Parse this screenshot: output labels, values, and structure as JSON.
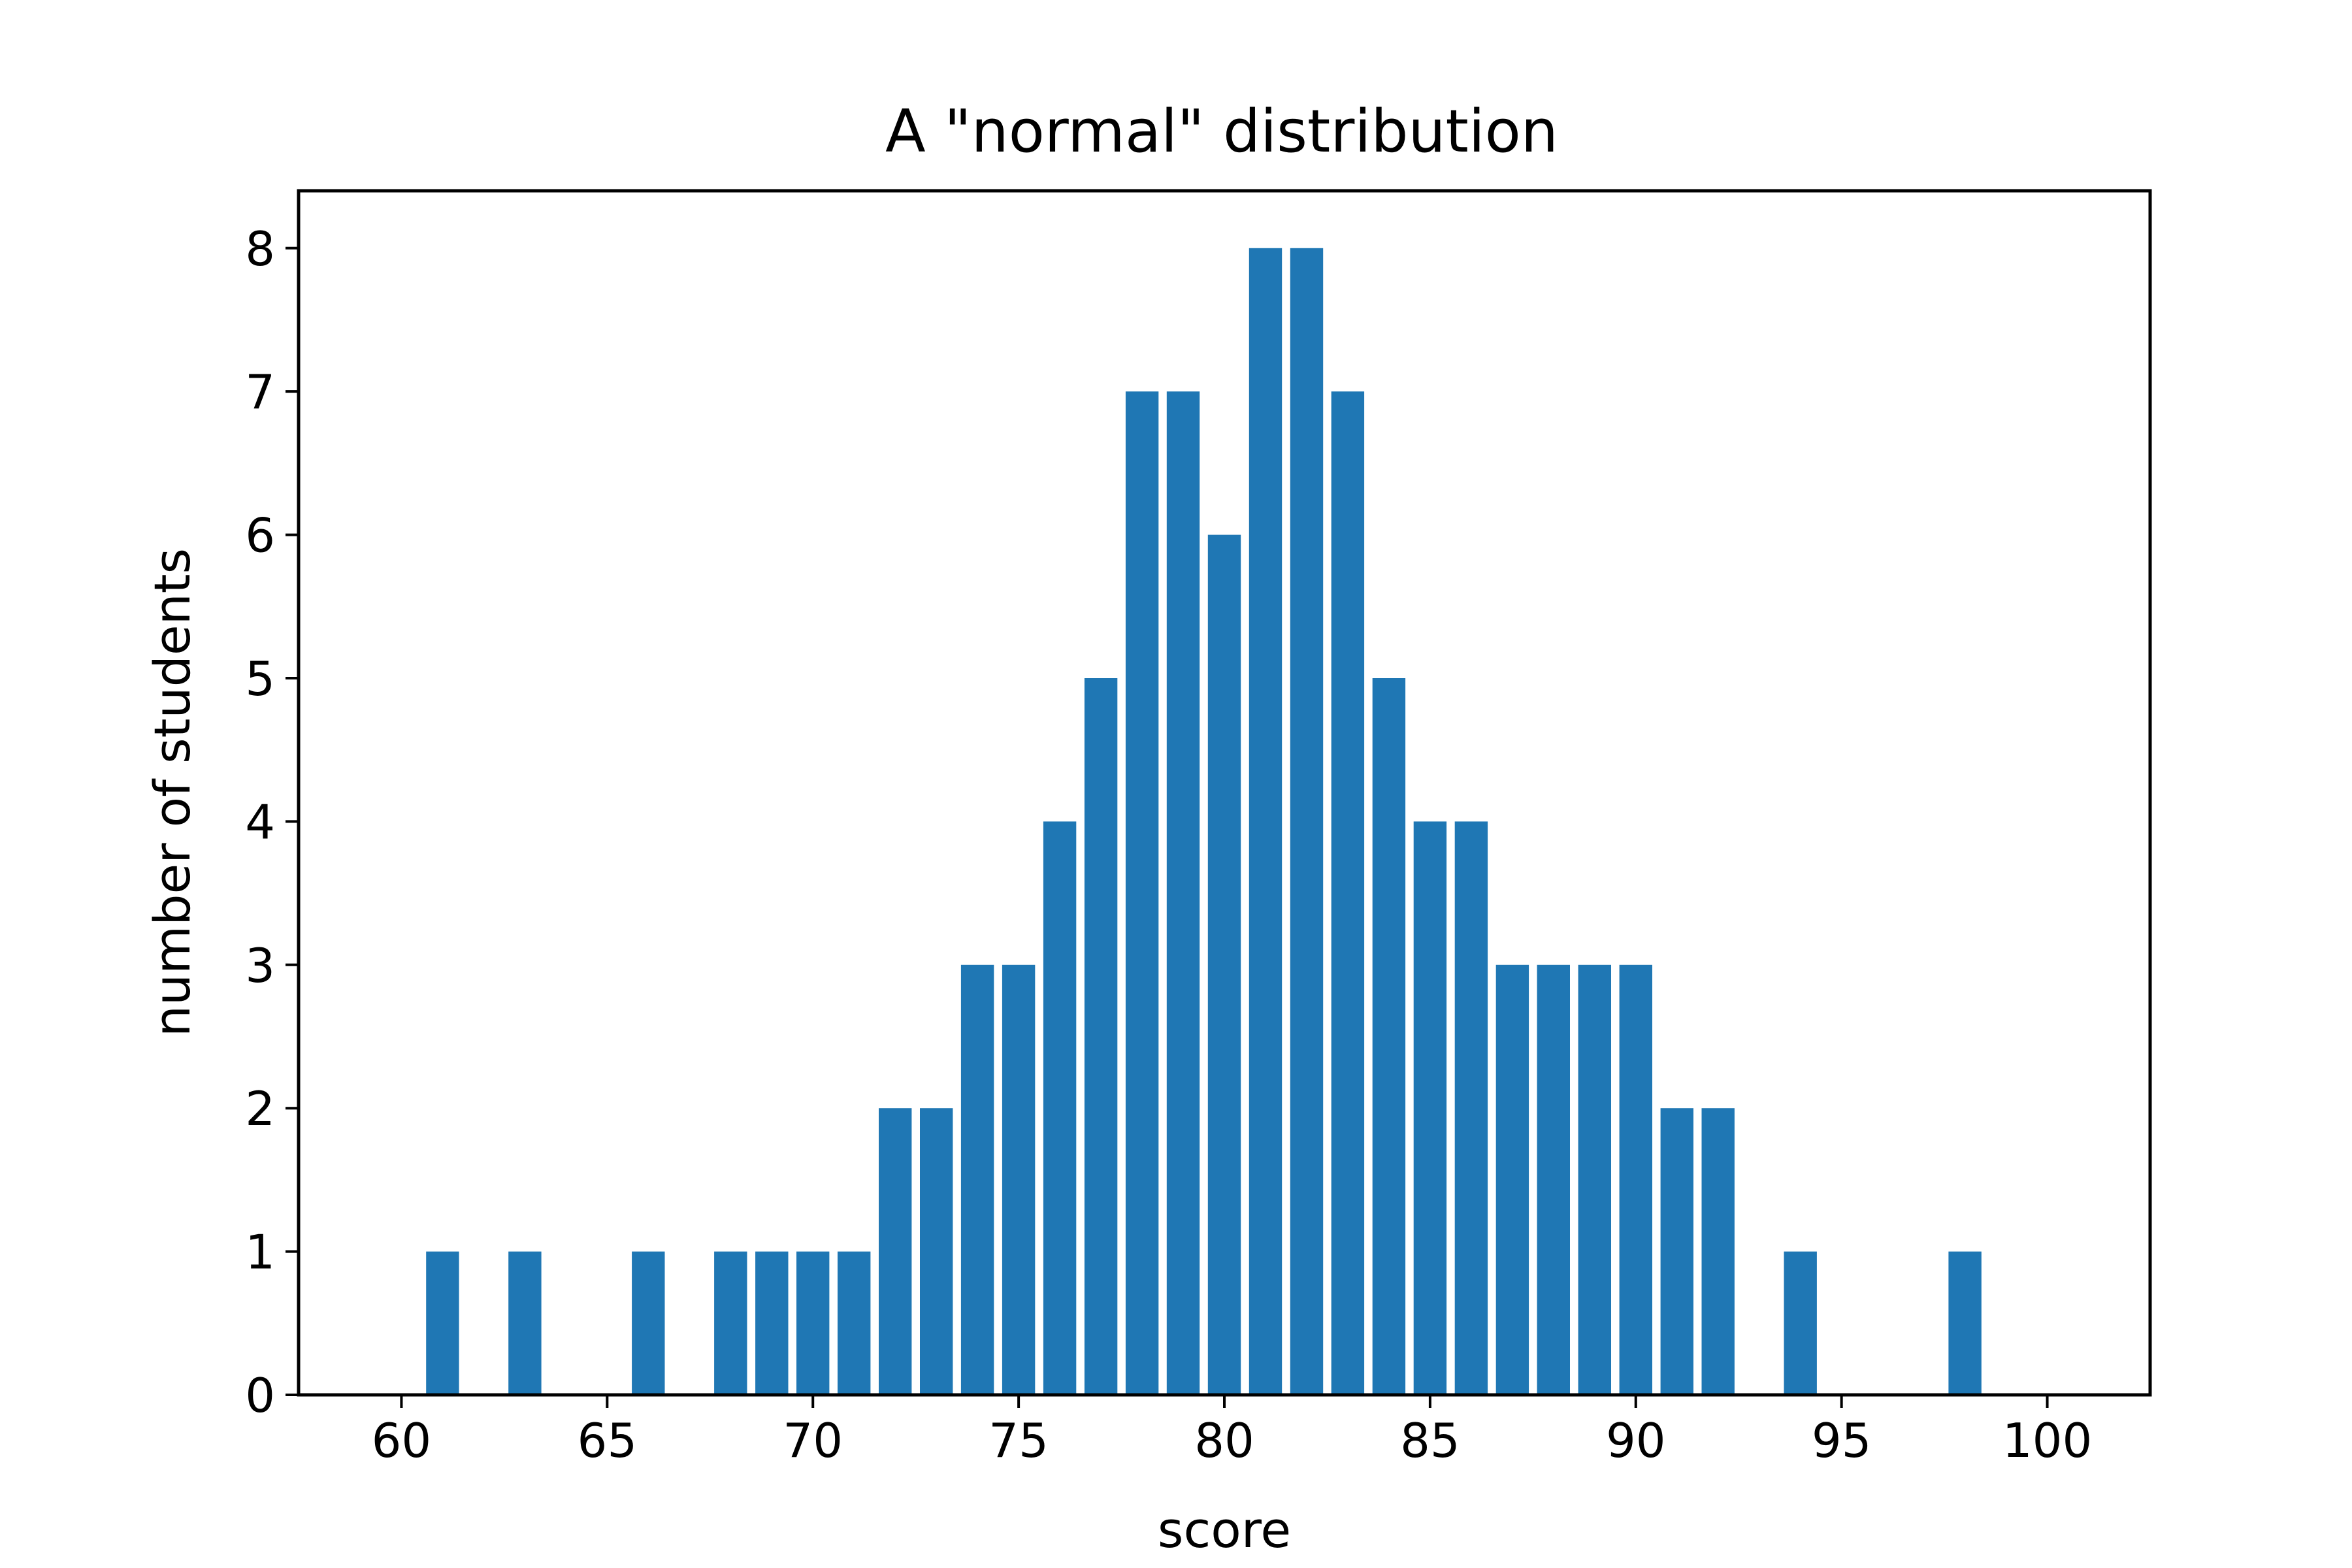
{
  "chart_data": {
    "type": "bar",
    "title": "A \"normal\" distribution",
    "xlabel": "score",
    "ylabel": "number of students",
    "xlim": [
      57.5,
      102.5
    ],
    "ylim": [
      0,
      8.4
    ],
    "xticks": [
      60,
      65,
      70,
      75,
      80,
      85,
      90,
      95,
      100
    ],
    "yticks": [
      0,
      1,
      2,
      3,
      4,
      5,
      6,
      7,
      8
    ],
    "grid": false,
    "bar_color": "#1f77b4",
    "x": [
      61,
      63,
      66,
      68,
      69,
      70,
      71,
      72,
      73,
      74,
      75,
      76,
      77,
      78,
      79,
      80,
      81,
      82,
      83,
      84,
      85,
      86,
      87,
      88,
      89,
      90,
      91,
      92,
      94,
      98
    ],
    "values": [
      1,
      1,
      1,
      1,
      1,
      1,
      1,
      2,
      2,
      3,
      3,
      4,
      5,
      7,
      7,
      6,
      8,
      8,
      7,
      5,
      4,
      4,
      3,
      3,
      3,
      3,
      2,
      2,
      1,
      1
    ]
  }
}
